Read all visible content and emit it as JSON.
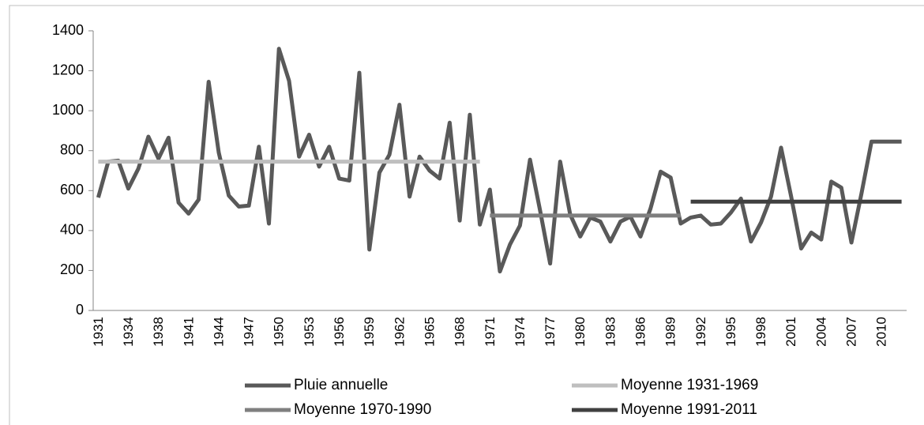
{
  "chart_data": {
    "type": "line",
    "categories": [
      "1931",
      null,
      null,
      "1934",
      null,
      null,
      "1938",
      null,
      null,
      "1941",
      null,
      null,
      "1944",
      null,
      null,
      "1947",
      null,
      null,
      "1950",
      null,
      null,
      "1953",
      null,
      null,
      "1956",
      null,
      null,
      "1959",
      null,
      null,
      "1962",
      null,
      null,
      "1965",
      null,
      null,
      "1968",
      null,
      null,
      "1971",
      null,
      null,
      "1974",
      null,
      null,
      "1977",
      null,
      null,
      "1980",
      null,
      null,
      "1983",
      null,
      null,
      "1986",
      null,
      null,
      "1989",
      null,
      null,
      "1992",
      null,
      null,
      "1995",
      null,
      null,
      "1998",
      null,
      null,
      "2001",
      null,
      null,
      "2004",
      null,
      null,
      "2007",
      null,
      null,
      "2010",
      null,
      null
    ],
    "series": [
      {
        "name": "Pluie annuelle",
        "color": "#595959",
        "values": [
          565,
          745,
          750,
          610,
          710,
          870,
          760,
          865,
          540,
          485,
          555,
          1145,
          790,
          575,
          520,
          525,
          820,
          435,
          1310,
          1150,
          770,
          880,
          720,
          820,
          660,
          650,
          1190,
          305,
          690,
          780,
          1030,
          570,
          770,
          700,
          660,
          940,
          450,
          980,
          430,
          605,
          195,
          330,
          425,
          755,
          500,
          235,
          745,
          480,
          370,
          465,
          445,
          345,
          445,
          470,
          370,
          510,
          695,
          665,
          435,
          465,
          475,
          430,
          435,
          490,
          560,
          345,
          440,
          570,
          815,
          570,
          310,
          390,
          355,
          645,
          615,
          340,
          585,
          845,
          845,
          845,
          845
        ]
      },
      {
        "name": "Moyenne 1931-1969",
        "color": "#bfbfbf",
        "values": [
          745,
          745,
          745,
          745,
          745,
          745,
          745,
          745,
          745,
          745,
          745,
          745,
          745,
          745,
          745,
          745,
          745,
          745,
          745,
          745,
          745,
          745,
          745,
          745,
          745,
          745,
          745,
          745,
          745,
          745,
          745,
          745,
          745,
          745,
          745,
          745,
          745,
          745,
          745,
          null,
          null,
          null,
          null,
          null,
          null,
          null,
          null,
          null,
          null,
          null,
          null,
          null,
          null,
          null,
          null,
          null,
          null,
          null,
          null,
          null,
          null,
          null,
          null,
          null,
          null,
          null,
          null,
          null,
          null,
          null,
          null,
          null,
          null,
          null,
          null,
          null,
          null,
          null,
          null,
          null,
          null
        ]
      },
      {
        "name": "Moyenne 1970-1990",
        "color": "#7f7f7f",
        "values": [
          null,
          null,
          null,
          null,
          null,
          null,
          null,
          null,
          null,
          null,
          null,
          null,
          null,
          null,
          null,
          null,
          null,
          null,
          null,
          null,
          null,
          null,
          null,
          null,
          null,
          null,
          null,
          null,
          null,
          null,
          null,
          null,
          null,
          null,
          null,
          null,
          null,
          null,
          null,
          475,
          475,
          475,
          475,
          475,
          475,
          475,
          475,
          475,
          475,
          475,
          475,
          475,
          475,
          475,
          475,
          475,
          475,
          475,
          475,
          null,
          null,
          null,
          null,
          null,
          null,
          null,
          null,
          null,
          null,
          null,
          null,
          null,
          null,
          null,
          null,
          null,
          null,
          null,
          null,
          null,
          null
        ]
      },
      {
        "name": "Moyenne 1991-2011",
        "color": "#404040",
        "values": [
          null,
          null,
          null,
          null,
          null,
          null,
          null,
          null,
          null,
          null,
          null,
          null,
          null,
          null,
          null,
          null,
          null,
          null,
          null,
          null,
          null,
          null,
          null,
          null,
          null,
          null,
          null,
          null,
          null,
          null,
          null,
          null,
          null,
          null,
          null,
          null,
          null,
          null,
          null,
          null,
          null,
          null,
          null,
          null,
          null,
          null,
          null,
          null,
          null,
          null,
          null,
          null,
          null,
          null,
          null,
          null,
          null,
          null,
          null,
          545,
          545,
          545,
          545,
          545,
          545,
          545,
          545,
          545,
          545,
          545,
          545,
          545,
          545,
          545,
          545,
          545,
          545,
          545,
          545,
          545,
          545
        ]
      }
    ],
    "ylim": [
      0,
      1400
    ],
    "yticks": [
      0,
      200,
      400,
      600,
      800,
      1000,
      1200,
      1400
    ]
  }
}
